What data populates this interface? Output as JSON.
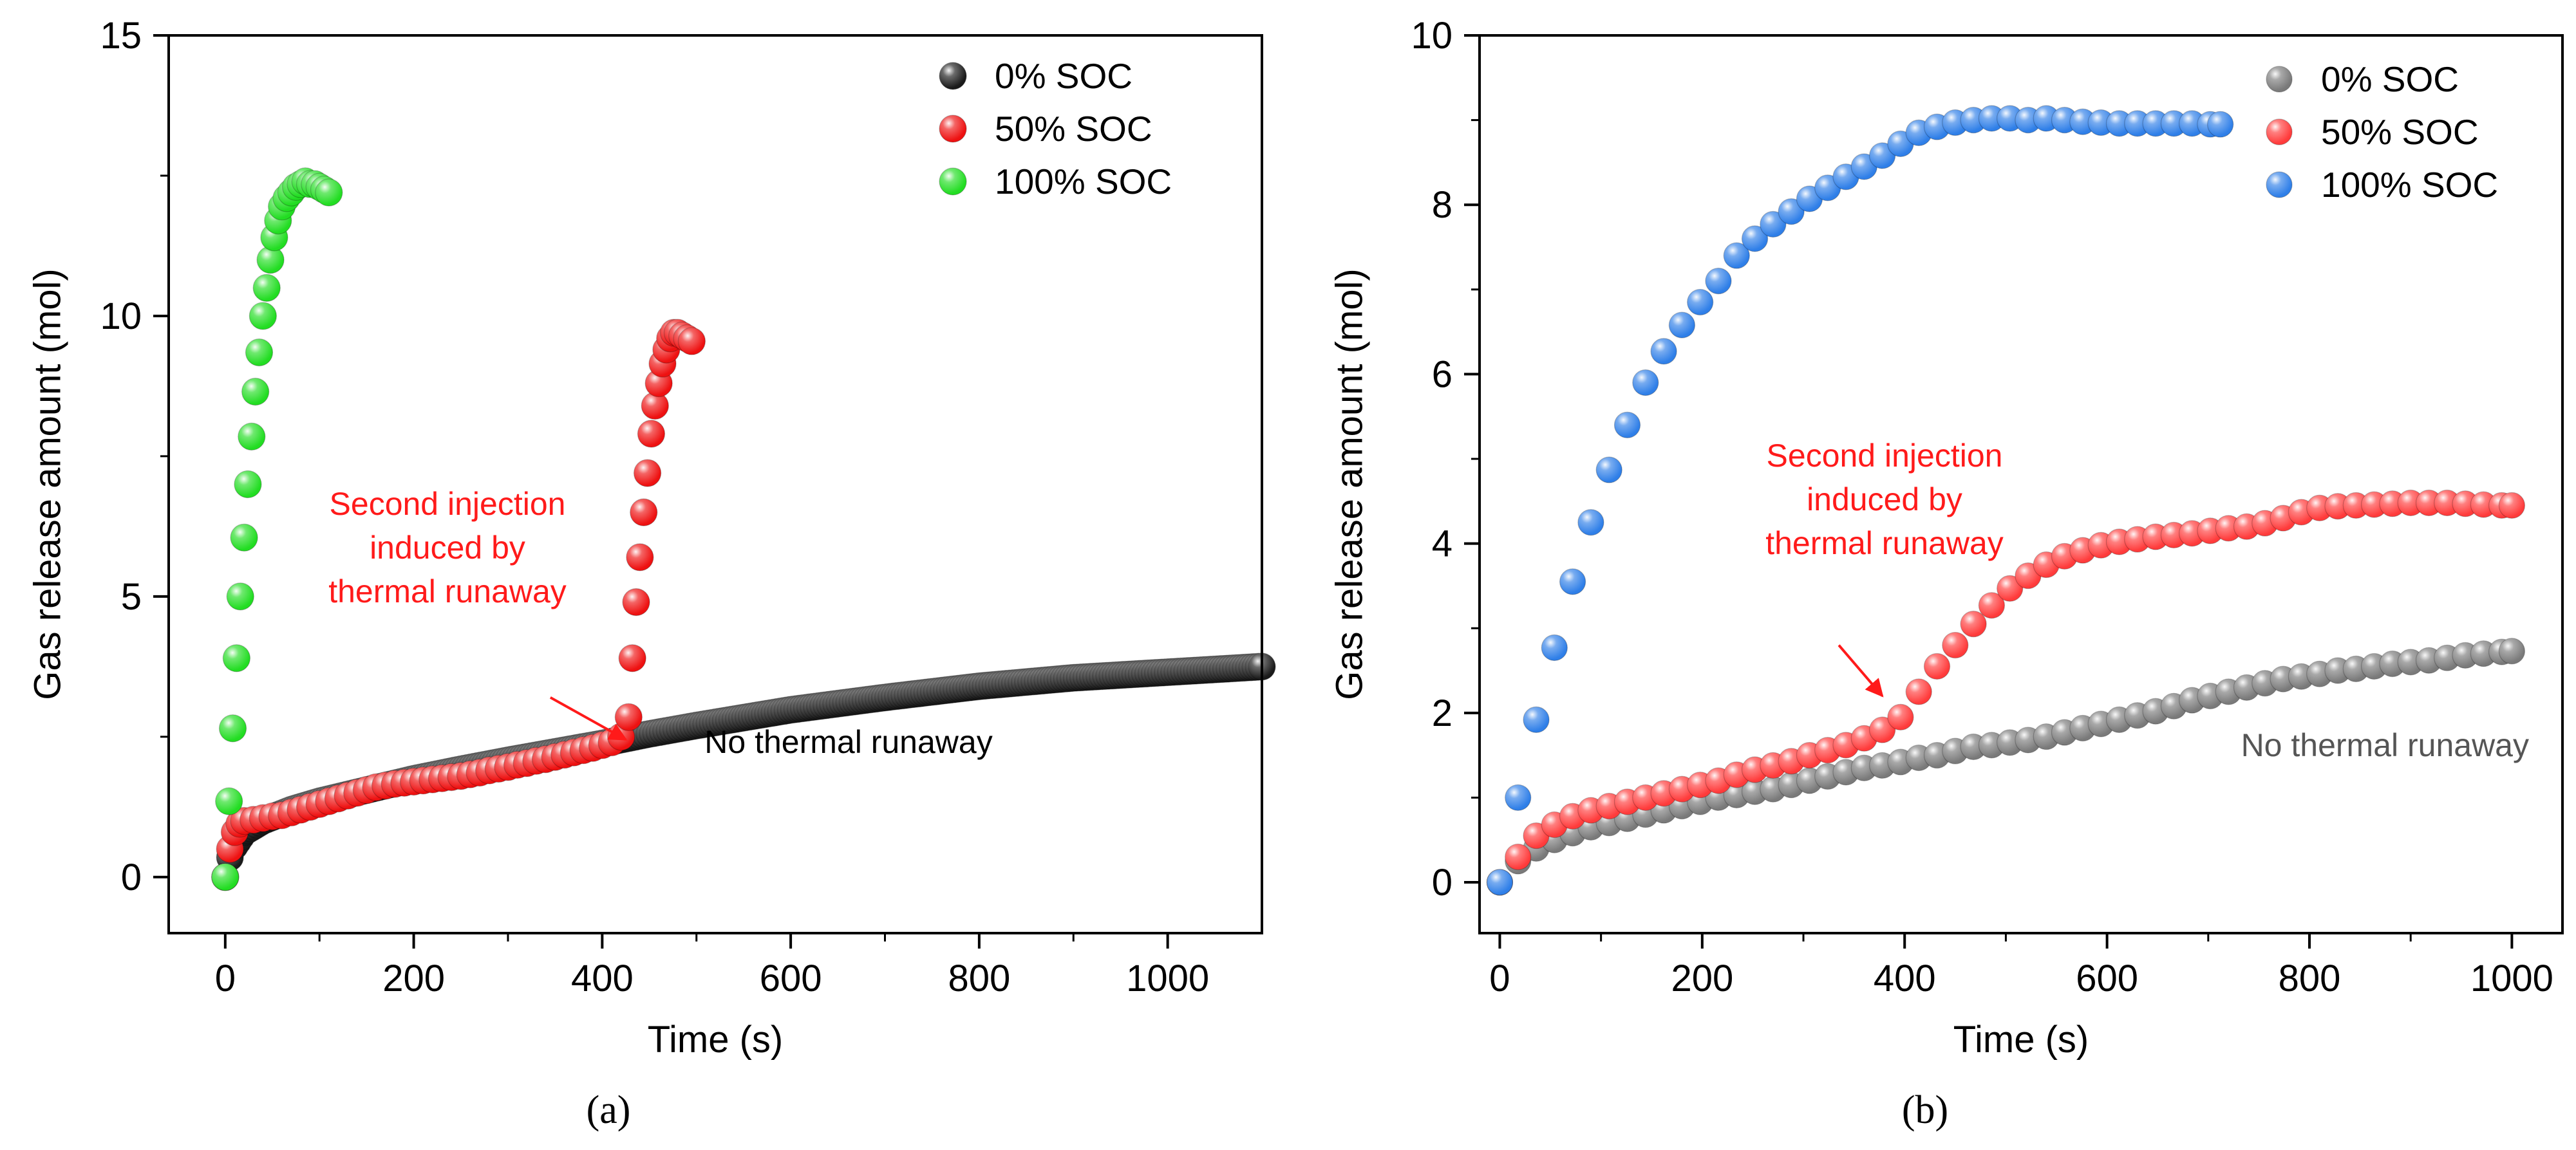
{
  "panel_a_label": "(a)",
  "panel_b_label": "(b)",
  "chart_data": [
    {
      "type": "scatter",
      "panel": "a",
      "xlabel": "Time (s)",
      "ylabel": "Gas release amount (mol)",
      "xlim": [
        -60,
        1100
      ],
      "ylim": [
        -1,
        15
      ],
      "xticks": [
        0,
        200,
        400,
        600,
        800,
        1000
      ],
      "yticks": [
        0,
        5,
        10,
        15
      ],
      "legend_position": "top-right",
      "annotations": [
        {
          "lines": [
            "Second injection",
            "induced by",
            "thermal runaway"
          ],
          "color": "#ff1a1a",
          "arrow": true,
          "arrow_from": [
            345,
            3.2
          ],
          "arrow_to": [
            425,
            2.45
          ]
        },
        {
          "lines": [
            "No thermal runaway"
          ],
          "color": "#000000",
          "arrow": false
        }
      ],
      "series": [
        {
          "name": "0% SOC",
          "color": "#1a1a1a",
          "dense": true,
          "x": [
            0,
            5,
            10,
            20,
            40,
            70,
            100,
            150,
            200,
            250,
            300,
            350,
            400,
            450,
            500,
            600,
            700,
            800,
            900,
            1000,
            1100
          ],
          "y": [
            0,
            0.35,
            0.55,
            0.8,
            1.0,
            1.2,
            1.35,
            1.55,
            1.75,
            1.92,
            2.08,
            2.23,
            2.38,
            2.55,
            2.7,
            2.98,
            3.2,
            3.4,
            3.55,
            3.65,
            3.75
          ]
        },
        {
          "name": "50% SOC",
          "color": "#ee1111",
          "dense": false,
          "x": [
            0,
            5,
            10,
            15,
            20,
            30,
            40,
            50,
            60,
            70,
            80,
            90,
            100,
            110,
            120,
            130,
            140,
            150,
            160,
            170,
            180,
            190,
            200,
            210,
            220,
            230,
            240,
            250,
            260,
            270,
            280,
            290,
            300,
            310,
            320,
            330,
            340,
            350,
            360,
            370,
            380,
            390,
            400,
            410,
            420,
            428,
            432,
            436,
            440,
            444,
            448,
            452,
            456,
            460,
            464,
            468,
            472,
            476,
            480,
            485,
            490,
            495
          ],
          "y": [
            0,
            0.5,
            0.8,
            0.95,
            1.0,
            1.02,
            1.05,
            1.08,
            1.1,
            1.15,
            1.2,
            1.25,
            1.3,
            1.35,
            1.4,
            1.45,
            1.5,
            1.55,
            1.6,
            1.63,
            1.66,
            1.68,
            1.7,
            1.72,
            1.74,
            1.76,
            1.78,
            1.8,
            1.83,
            1.86,
            1.9,
            1.93,
            1.96,
            2.0,
            2.03,
            2.07,
            2.1,
            2.14,
            2.18,
            2.22,
            2.26,
            2.3,
            2.35,
            2.4,
            2.5,
            2.85,
            3.9,
            4.9,
            5.7,
            6.5,
            7.2,
            7.9,
            8.4,
            8.8,
            9.15,
            9.4,
            9.6,
            9.7,
            9.7,
            9.65,
            9.6,
            9.55
          ]
        },
        {
          "name": "100% SOC",
          "color": "#22dd22",
          "dense": false,
          "x": [
            0,
            4,
            8,
            12,
            16,
            20,
            24,
            28,
            32,
            36,
            40,
            44,
            48,
            52,
            56,
            60,
            65,
            70,
            75,
            80,
            85,
            90,
            95,
            100,
            105,
            110
          ],
          "y": [
            0,
            1.35,
            2.65,
            3.9,
            5.0,
            6.05,
            7.0,
            7.85,
            8.65,
            9.35,
            10.0,
            10.5,
            11.0,
            11.4,
            11.7,
            11.95,
            12.1,
            12.2,
            12.3,
            12.35,
            12.4,
            12.35,
            12.35,
            12.3,
            12.25,
            12.2
          ]
        }
      ]
    },
    {
      "type": "scatter",
      "panel": "b",
      "xlabel": "Time (s)",
      "ylabel": "Gas release amount (mol)",
      "xlim": [
        -20,
        1050
      ],
      "ylim": [
        -0.6,
        10
      ],
      "xticks": [
        0,
        200,
        400,
        600,
        800,
        1000
      ],
      "yticks": [
        0,
        2,
        4,
        6,
        8,
        10
      ],
      "legend_position": "top-right",
      "annotations": [
        {
          "lines": [
            "Second injection",
            "induced by",
            "thermal runaway"
          ],
          "color": "#ff1a1a",
          "arrow": true,
          "arrow_from": [
            335,
            2.8
          ],
          "arrow_to": [
            378,
            2.2
          ]
        },
        {
          "lines": [
            "No thermal runaway"
          ],
          "color": "#555555",
          "arrow": false
        }
      ],
      "series": [
        {
          "name": "0% SOC",
          "color": "#7a7a7a",
          "x": [
            0,
            18,
            36,
            54,
            72,
            90,
            108,
            126,
            144,
            162,
            180,
            198,
            216,
            234,
            252,
            270,
            288,
            306,
            324,
            342,
            360,
            378,
            396,
            414,
            432,
            450,
            468,
            486,
            504,
            522,
            540,
            558,
            576,
            594,
            612,
            630,
            648,
            666,
            684,
            702,
            720,
            738,
            756,
            774,
            792,
            810,
            828,
            846,
            864,
            882,
            900,
            918,
            936,
            954,
            972,
            990,
            1000
          ],
          "y": [
            0,
            0.25,
            0.4,
            0.5,
            0.58,
            0.65,
            0.7,
            0.75,
            0.8,
            0.85,
            0.9,
            0.95,
            1.0,
            1.03,
            1.07,
            1.1,
            1.15,
            1.2,
            1.25,
            1.3,
            1.35,
            1.38,
            1.42,
            1.47,
            1.5,
            1.55,
            1.6,
            1.62,
            1.65,
            1.68,
            1.72,
            1.77,
            1.82,
            1.87,
            1.92,
            1.97,
            2.02,
            2.08,
            2.15,
            2.2,
            2.25,
            2.3,
            2.35,
            2.4,
            2.43,
            2.46,
            2.5,
            2.52,
            2.55,
            2.58,
            2.6,
            2.62,
            2.65,
            2.68,
            2.7,
            2.72,
            2.73
          ]
        },
        {
          "name": "50% SOC",
          "color": "#ff3b3b",
          "x": [
            0,
            18,
            36,
            54,
            72,
            90,
            108,
            126,
            144,
            162,
            180,
            198,
            216,
            234,
            252,
            270,
            288,
            306,
            324,
            342,
            360,
            378,
            396,
            414,
            432,
            450,
            468,
            486,
            504,
            522,
            540,
            558,
            576,
            594,
            612,
            630,
            648,
            666,
            684,
            702,
            720,
            738,
            756,
            774,
            792,
            810,
            828,
            846,
            864,
            882,
            900,
            918,
            936,
            954,
            972,
            990,
            1000
          ],
          "y": [
            0,
            0.3,
            0.55,
            0.68,
            0.78,
            0.85,
            0.9,
            0.95,
            1.0,
            1.05,
            1.1,
            1.15,
            1.2,
            1.27,
            1.33,
            1.38,
            1.43,
            1.5,
            1.56,
            1.62,
            1.7,
            1.8,
            1.95,
            2.25,
            2.55,
            2.8,
            3.05,
            3.27,
            3.47,
            3.62,
            3.75,
            3.85,
            3.92,
            3.98,
            4.02,
            4.05,
            4.08,
            4.1,
            4.12,
            4.15,
            4.18,
            4.2,
            4.24,
            4.3,
            4.37,
            4.42,
            4.44,
            4.45,
            4.46,
            4.47,
            4.48,
            4.48,
            4.48,
            4.47,
            4.46,
            4.45,
            4.45
          ]
        },
        {
          "name": "100% SOC",
          "color": "#2f7fe8",
          "x": [
            0,
            18,
            36,
            54,
            72,
            90,
            108,
            126,
            144,
            162,
            180,
            198,
            216,
            234,
            252,
            270,
            288,
            306,
            324,
            342,
            360,
            378,
            396,
            414,
            432,
            450,
            468,
            486,
            504,
            522,
            540,
            558,
            576,
            594,
            612,
            630,
            648,
            666,
            684,
            702,
            712
          ],
          "y": [
            0,
            1.0,
            1.92,
            2.77,
            3.55,
            4.25,
            4.87,
            5.4,
            5.9,
            6.27,
            6.58,
            6.85,
            7.1,
            7.4,
            7.6,
            7.77,
            7.92,
            8.07,
            8.2,
            8.33,
            8.45,
            8.58,
            8.72,
            8.85,
            8.92,
            8.97,
            9.0,
            9.02,
            9.02,
            9.0,
            9.02,
            9.0,
            8.98,
            8.97,
            8.96,
            8.96,
            8.96,
            8.96,
            8.96,
            8.95,
            8.95
          ]
        }
      ]
    }
  ]
}
